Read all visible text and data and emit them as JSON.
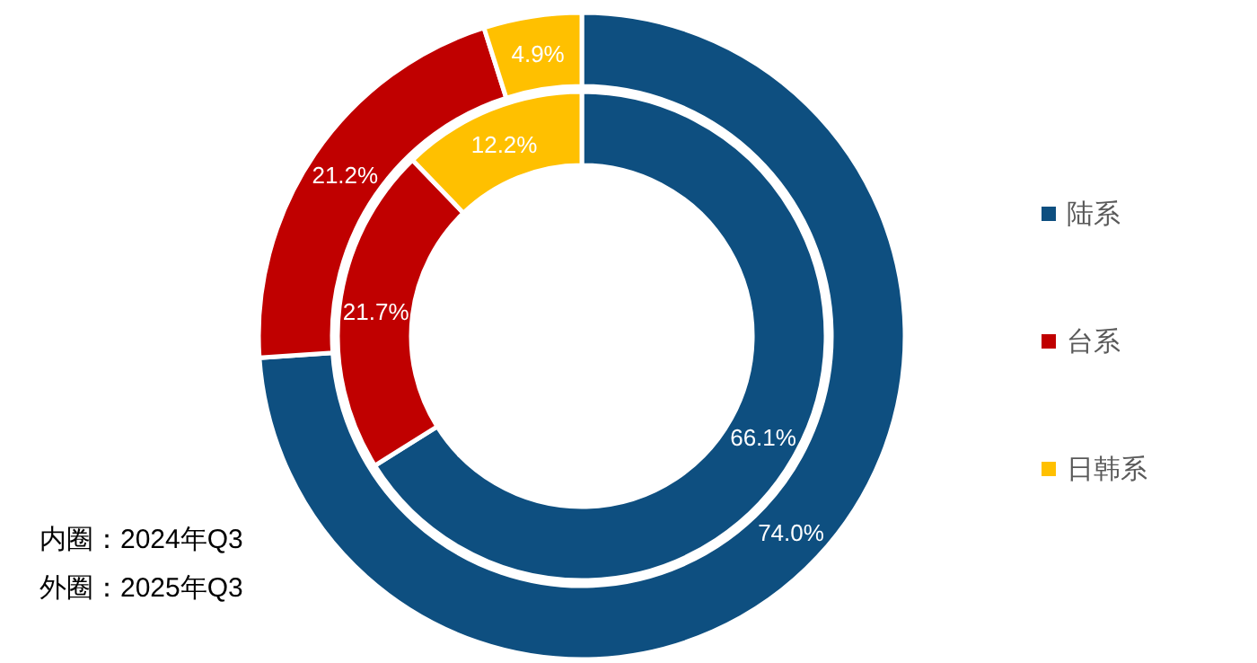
{
  "chart_data": {
    "type": "donut",
    "categories": [
      "陆系",
      "台系",
      "日韩系"
    ],
    "colors": [
      "#0e4f80",
      "#c00000",
      "#ffc000"
    ],
    "series": [
      {
        "values": [
          66.1,
          21.7,
          12.2
        ],
        "value_labels": [
          "66.1%",
          "21.7%",
          "12.2%"
        ]
      },
      {
        "values": [
          74.0,
          21.2,
          4.9
        ],
        "value_labels": [
          "74.0%",
          "21.2%",
          "4.9%"
        ]
      }
    ],
    "legend": "right",
    "annotations": [
      "内圈：2024年Q3",
      "外圈：2025年Q3"
    ]
  }
}
